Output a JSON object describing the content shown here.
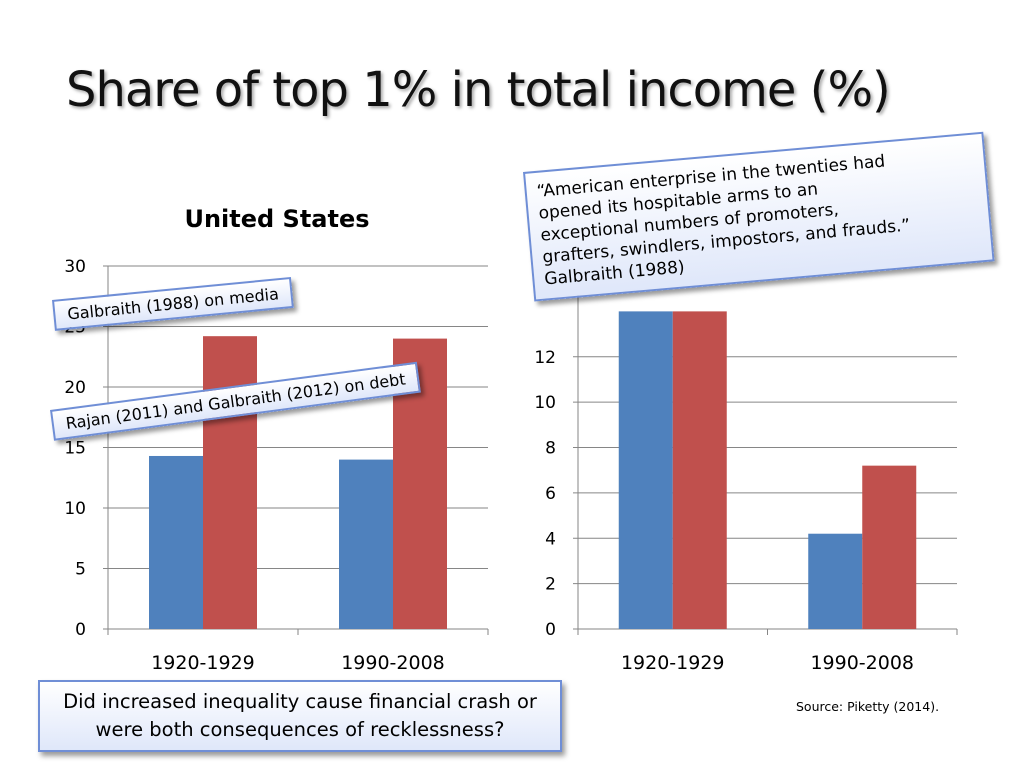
{
  "slide": {
    "title": "Share of top 1% in total income (%)",
    "question": "Did increased inequality cause financial crash or were both consequences of recklessness?",
    "source": "Source: Piketty (2014)."
  },
  "callouts": {
    "media": "Galbraith (1988) on media",
    "debt": "Rajan (2011) and Galbraith (2012) on debt",
    "quote_lines": [
      "“American enterprise in the twenties had",
      "opened its hospitable arms to an",
      "exceptional numbers of promoters,",
      "grafters, swindlers, impostors, and frauds.”",
      "Galbraith (1988)"
    ]
  },
  "colors": {
    "series1": "#4f81bd",
    "series2": "#c0504d",
    "grid": "#868686",
    "callout_border": "#6f8ed6"
  },
  "chart_data": [
    {
      "type": "bar",
      "title": "United States",
      "categories": [
        "1920-1929",
        "1990-2008"
      ],
      "series": [
        {
          "values": [
            14.3,
            14.0
          ]
        },
        {
          "values": [
            24.2,
            24.0
          ]
        }
      ],
      "ylim": [
        0,
        30
      ],
      "yticks": [
        0,
        5,
        10,
        15,
        20,
        25,
        30
      ],
      "grid": true
    },
    {
      "type": "bar",
      "title": "",
      "categories": [
        "1920-1929",
        "1990-2008"
      ],
      "series": [
        {
          "values": [
            14.0,
            4.2
          ]
        },
        {
          "values": [
            14.0,
            7.2
          ]
        }
      ],
      "ylim": [
        0,
        16
      ],
      "yticks": [
        0,
        2,
        4,
        6,
        8,
        10,
        12
      ],
      "grid": true
    }
  ]
}
